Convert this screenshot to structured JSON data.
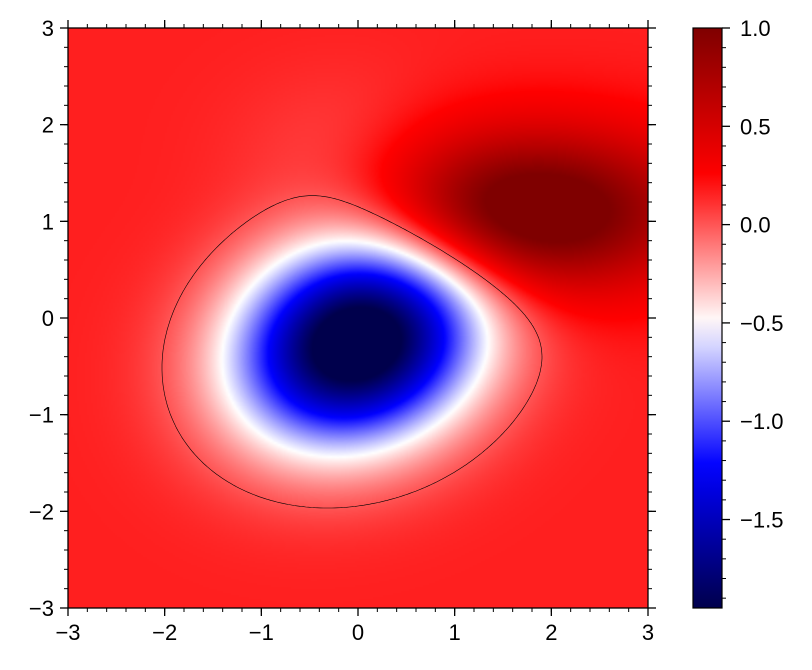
{
  "chart_data": {
    "type": "heatmap",
    "title": "",
    "xlabel": "",
    "ylabel": "",
    "xlim": [
      -3,
      3
    ],
    "ylim": [
      -3,
      3
    ],
    "x_ticks": [
      "−3",
      "−2",
      "−1",
      "0",
      "1",
      "2",
      "3"
    ],
    "y_ticks": [
      "−3",
      "−2",
      "−1",
      "0",
      "1",
      "2",
      "3"
    ],
    "x_tick_values": [
      -3,
      -2,
      -1,
      0,
      1,
      2,
      3
    ],
    "y_tick_values": [
      -3,
      -2,
      -1,
      0,
      1,
      2,
      3
    ],
    "colormap": "seismic",
    "colormap_stops": [
      "#00004c",
      "#0000ff",
      "#ffffff",
      "#ff0000",
      "#7f0000"
    ],
    "color_range": [
      -1.95,
      1.0
    ],
    "colorbar_ticks": [
      "1.0",
      "0.5",
      "0.0",
      "−0.5",
      "−1.0",
      "−1.5"
    ],
    "colorbar_tick_values": [
      1.0,
      0.5,
      0.0,
      -0.5,
      -1.0,
      -1.5
    ],
    "features": [
      {
        "kind": "minimum",
        "x": 0.0,
        "y": -0.25,
        "value": -1.95
      },
      {
        "kind": "maximum",
        "x": 1.75,
        "y": 1.1,
        "value": 1.0
      }
    ],
    "contour_level": 0.0,
    "contour_color": "#000000",
    "grid": false
  }
}
